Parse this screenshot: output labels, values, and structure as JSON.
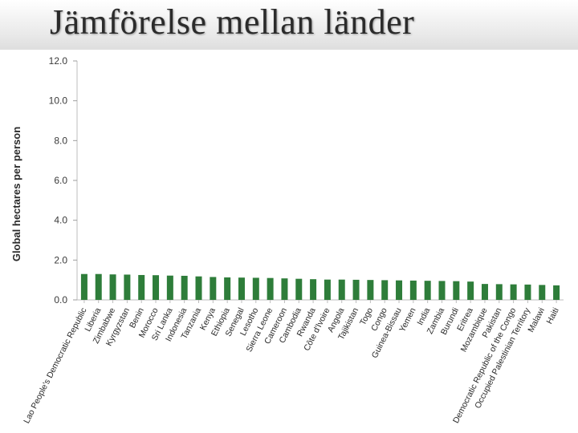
{
  "slide": {
    "title": "Jämförelse mellan länder"
  },
  "chart_data": {
    "type": "bar",
    "ylabel": "Global hectares per person",
    "ylim": [
      0,
      12
    ],
    "yticks": [
      "0.0",
      "2.0",
      "4.0",
      "6.0",
      "8.0",
      "10.0",
      "12.0"
    ],
    "bar_color": "#2e7d3a",
    "categories": [
      "Lao People's Democratic Republic",
      "Liberia",
      "Zimbabwe",
      "Kyrgyzstan",
      "Benin",
      "Morocco",
      "Sri Lanka",
      "Indonesia",
      "Tanzania",
      "Kenya",
      "Ethiopia",
      "Senegal",
      "Lesotho",
      "Sierra Leone",
      "Cameroon",
      "Cambodia",
      "Rwanda",
      "Côte d'Ivoire",
      "Angola",
      "Tajikistan",
      "Togo",
      "Congo",
      "Guinea-Bissau",
      "Yemen",
      "India",
      "Zambia",
      "Burundi",
      "Eritrea",
      "Mozambique",
      "Pakistan",
      "Democratic Republic of the Congo",
      "Occupied Palestinian Territory",
      "Malawi",
      "Haiti"
    ],
    "values": [
      1.3,
      1.3,
      1.28,
      1.27,
      1.25,
      1.24,
      1.22,
      1.21,
      1.18,
      1.15,
      1.13,
      1.12,
      1.11,
      1.1,
      1.08,
      1.06,
      1.04,
      1.02,
      1.02,
      1.01,
      1.0,
      0.99,
      0.98,
      0.97,
      0.96,
      0.95,
      0.94,
      0.92,
      0.8,
      0.79,
      0.78,
      0.77,
      0.75,
      0.73
    ]
  }
}
